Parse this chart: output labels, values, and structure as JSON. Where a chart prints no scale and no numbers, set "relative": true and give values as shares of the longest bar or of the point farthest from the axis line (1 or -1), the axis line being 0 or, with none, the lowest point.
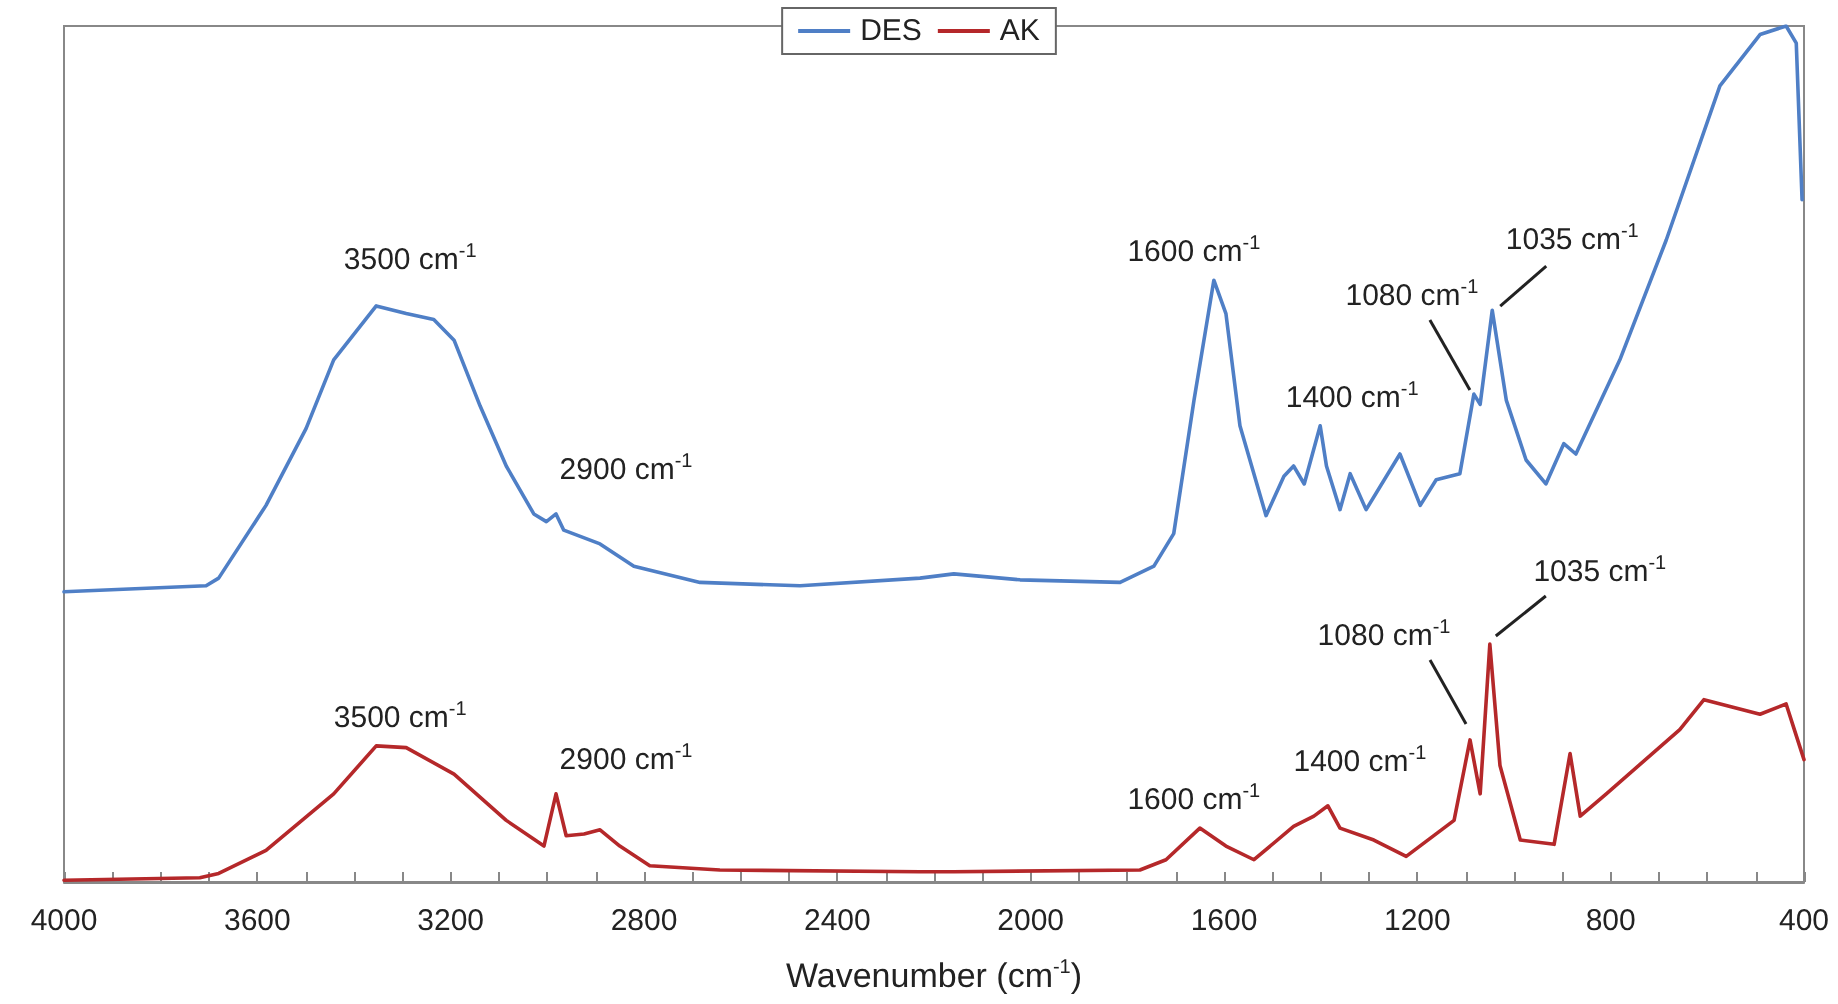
{
  "chart_data": {
    "type": "line",
    "relative": true,
    "xlabel": "Wavenumber (cm$^{-1}$)",
    "xlim": [
      4000,
      400
    ],
    "xticks": [
      4000,
      3600,
      3200,
      2800,
      2400,
      2000,
      1600,
      1200,
      800,
      400
    ],
    "grid": false,
    "legend": "top",
    "marker": "none",
    "line_style": "solid",
    "series": [
      {
        "name": "DES",
        "color": "#4f7fc6",
        "x": [
          4000,
          3706,
          3680,
          3582,
          3499,
          3442,
          3354,
          3292,
          3235,
          3193,
          3139,
          3085,
          3028,
          3002,
          2982,
          2966,
          2891,
          2821,
          2684,
          2477,
          2229,
          2159,
          2022,
          1815,
          1745,
          1704,
          1662,
          1621,
          1596,
          1567,
          1513,
          1476,
          1456,
          1434,
          1401,
          1388,
          1360,
          1339,
          1306,
          1236,
          1194,
          1161,
          1112,
          1083,
          1070,
          1045,
          1016,
          975,
          934,
          897,
          872,
          781,
          685,
          574,
          491,
          437,
          416,
          404
        ],
        "values": [
          0.339,
          0.346,
          0.355,
          0.44,
          0.53,
          0.61,
          0.673,
          0.664,
          0.657,
          0.633,
          0.556,
          0.486,
          0.43,
          0.421,
          0.43,
          0.411,
          0.395,
          0.369,
          0.35,
          0.346,
          0.355,
          0.36,
          0.353,
          0.35,
          0.369,
          0.407,
          0.563,
          0.703,
          0.664,
          0.533,
          0.428,
          0.474,
          0.486,
          0.465,
          0.533,
          0.486,
          0.435,
          0.477,
          0.435,
          0.5,
          0.44,
          0.47,
          0.477,
          0.57,
          0.558,
          0.668,
          0.563,
          0.493,
          0.465,
          0.512,
          0.5,
          0.61,
          0.75,
          0.93,
          0.99,
          1.0,
          0.98,
          0.797
        ]
      },
      {
        "name": "AK",
        "color": "#b5282a",
        "x": [
          4000,
          3719,
          3680,
          3582,
          3442,
          3354,
          3292,
          3193,
          3085,
          3007,
          2982,
          2961,
          2924,
          2891,
          2850,
          2788,
          2643,
          2229,
          2159,
          1774,
          1720,
          1650,
          1596,
          1538,
          1456,
          1414,
          1385,
          1360,
          1290,
          1223,
          1124,
          1091,
          1070,
          1050,
          1029,
          987,
          917,
          884,
          863,
          809,
          657,
          607,
          491,
          437,
          420,
          400
        ],
        "values": [
          0.002,
          0.005,
          0.01,
          0.037,
          0.103,
          0.159,
          0.157,
          0.126,
          0.072,
          0.042,
          0.103,
          0.054,
          0.056,
          0.061,
          0.042,
          0.019,
          0.014,
          0.012,
          0.012,
          0.014,
          0.026,
          0.063,
          0.042,
          0.026,
          0.065,
          0.077,
          0.089,
          0.063,
          0.049,
          0.03,
          0.072,
          0.166,
          0.103,
          0.278,
          0.136,
          0.049,
          0.044,
          0.15,
          0.077,
          0.103,
          0.178,
          0.213,
          0.196,
          0.208,
          0.178,
          0.143
        ]
      }
    ],
    "annotations": [
      {
        "text": "3500 cm$^{-1}$",
        "x": 3354,
        "y": 0.673
      },
      {
        "text": "2900 cm$^{-1}$",
        "x": 2982,
        "y": 0.43
      },
      {
        "text": "1600 cm$^{-1}$",
        "x": 1621,
        "y": 0.703
      },
      {
        "text": "1400 cm$^{-1}$",
        "x": 1401,
        "y": 0.533
      },
      {
        "text": "1080 cm$^{-1}$",
        "x": 1083,
        "y": 0.57
      },
      {
        "text": "1035 cm$^{-1}$",
        "x": 1045,
        "y": 0.668
      },
      {
        "text": "3500 cm$^{-1}$",
        "x": 3354,
        "y": 0.159
      },
      {
        "text": "2900 cm$^{-1}$",
        "x": 2982,
        "y": 0.103
      },
      {
        "text": "1600 cm$^{-1}$",
        "x": 1650,
        "y": 0.063
      },
      {
        "text": "1400 cm$^{-1}$",
        "x": 1385,
        "y": 0.089
      },
      {
        "text": "1080 cm$^{-1}$",
        "x": 1091,
        "y": 0.166
      },
      {
        "text": "1035 cm$^{-1}$",
        "x": 1050,
        "y": 0.278
      }
    ]
  }
}
